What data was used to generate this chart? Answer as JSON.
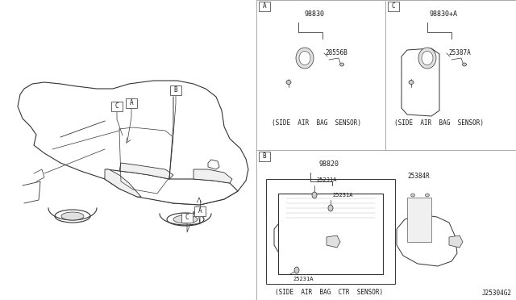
{
  "bg_color": "#ffffff",
  "text_color": "#1a1a1a",
  "diagram_id": "J25304G2",
  "panel_A": {
    "label": "A",
    "part_num_top": "98830",
    "part_num_sub": "28556B",
    "caption": "(SIDE  AIR  BAG  SENSOR)"
  },
  "panel_C": {
    "label": "C",
    "part_num_top": "98830+A",
    "part_num_sub": "25387A",
    "caption": "(SIDE  AIR  BAG  SENSOR)"
  },
  "panel_B": {
    "label": "B",
    "part_num_top": "98820",
    "part_num_inner1": "25231A",
    "part_num_inner2": "25231A",
    "part_num_inner3": "25231A",
    "part_num_side": "25384R",
    "caption": "(SIDE  AIR  BAG  CTR  SENSOR)"
  },
  "lc": "#333333",
  "lc_thin": "#555555",
  "fill_light": "#f0f0f0",
  "fill_mid": "#e0e0e0",
  "fill_dark": "#cccccc"
}
